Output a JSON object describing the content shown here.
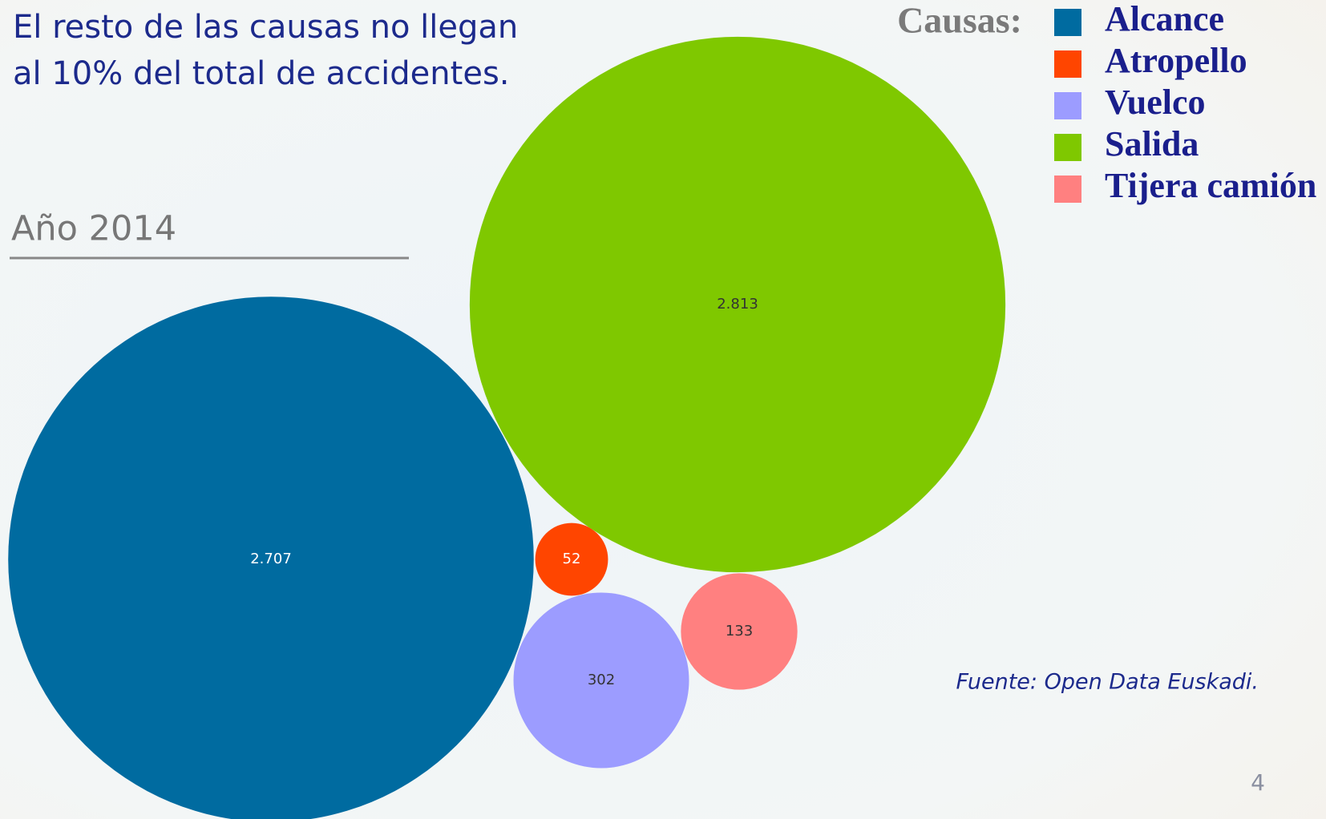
{
  "chart_data": {
    "type": "bubble",
    "title": [
      "El resto de las causas no llegan",
      "al 10% del total de accidentes."
    ],
    "subtitle": "Año 2014",
    "legend_title": "Causas:",
    "categories": [
      "Alcance",
      "Atropello",
      "Vuelco",
      "Salida",
      "Tijera camión"
    ],
    "values": [
      2707,
      52,
      302,
      2813,
      133
    ],
    "value_labels": [
      "2.707",
      "52",
      "302",
      "2.813",
      "133"
    ],
    "colors": [
      "#006ba0",
      "#ff4500",
      "#9c9cff",
      "#7fc800",
      "#ff8080"
    ],
    "source": "Fuente: Open Data Euskadi.",
    "page_number": "4"
  }
}
